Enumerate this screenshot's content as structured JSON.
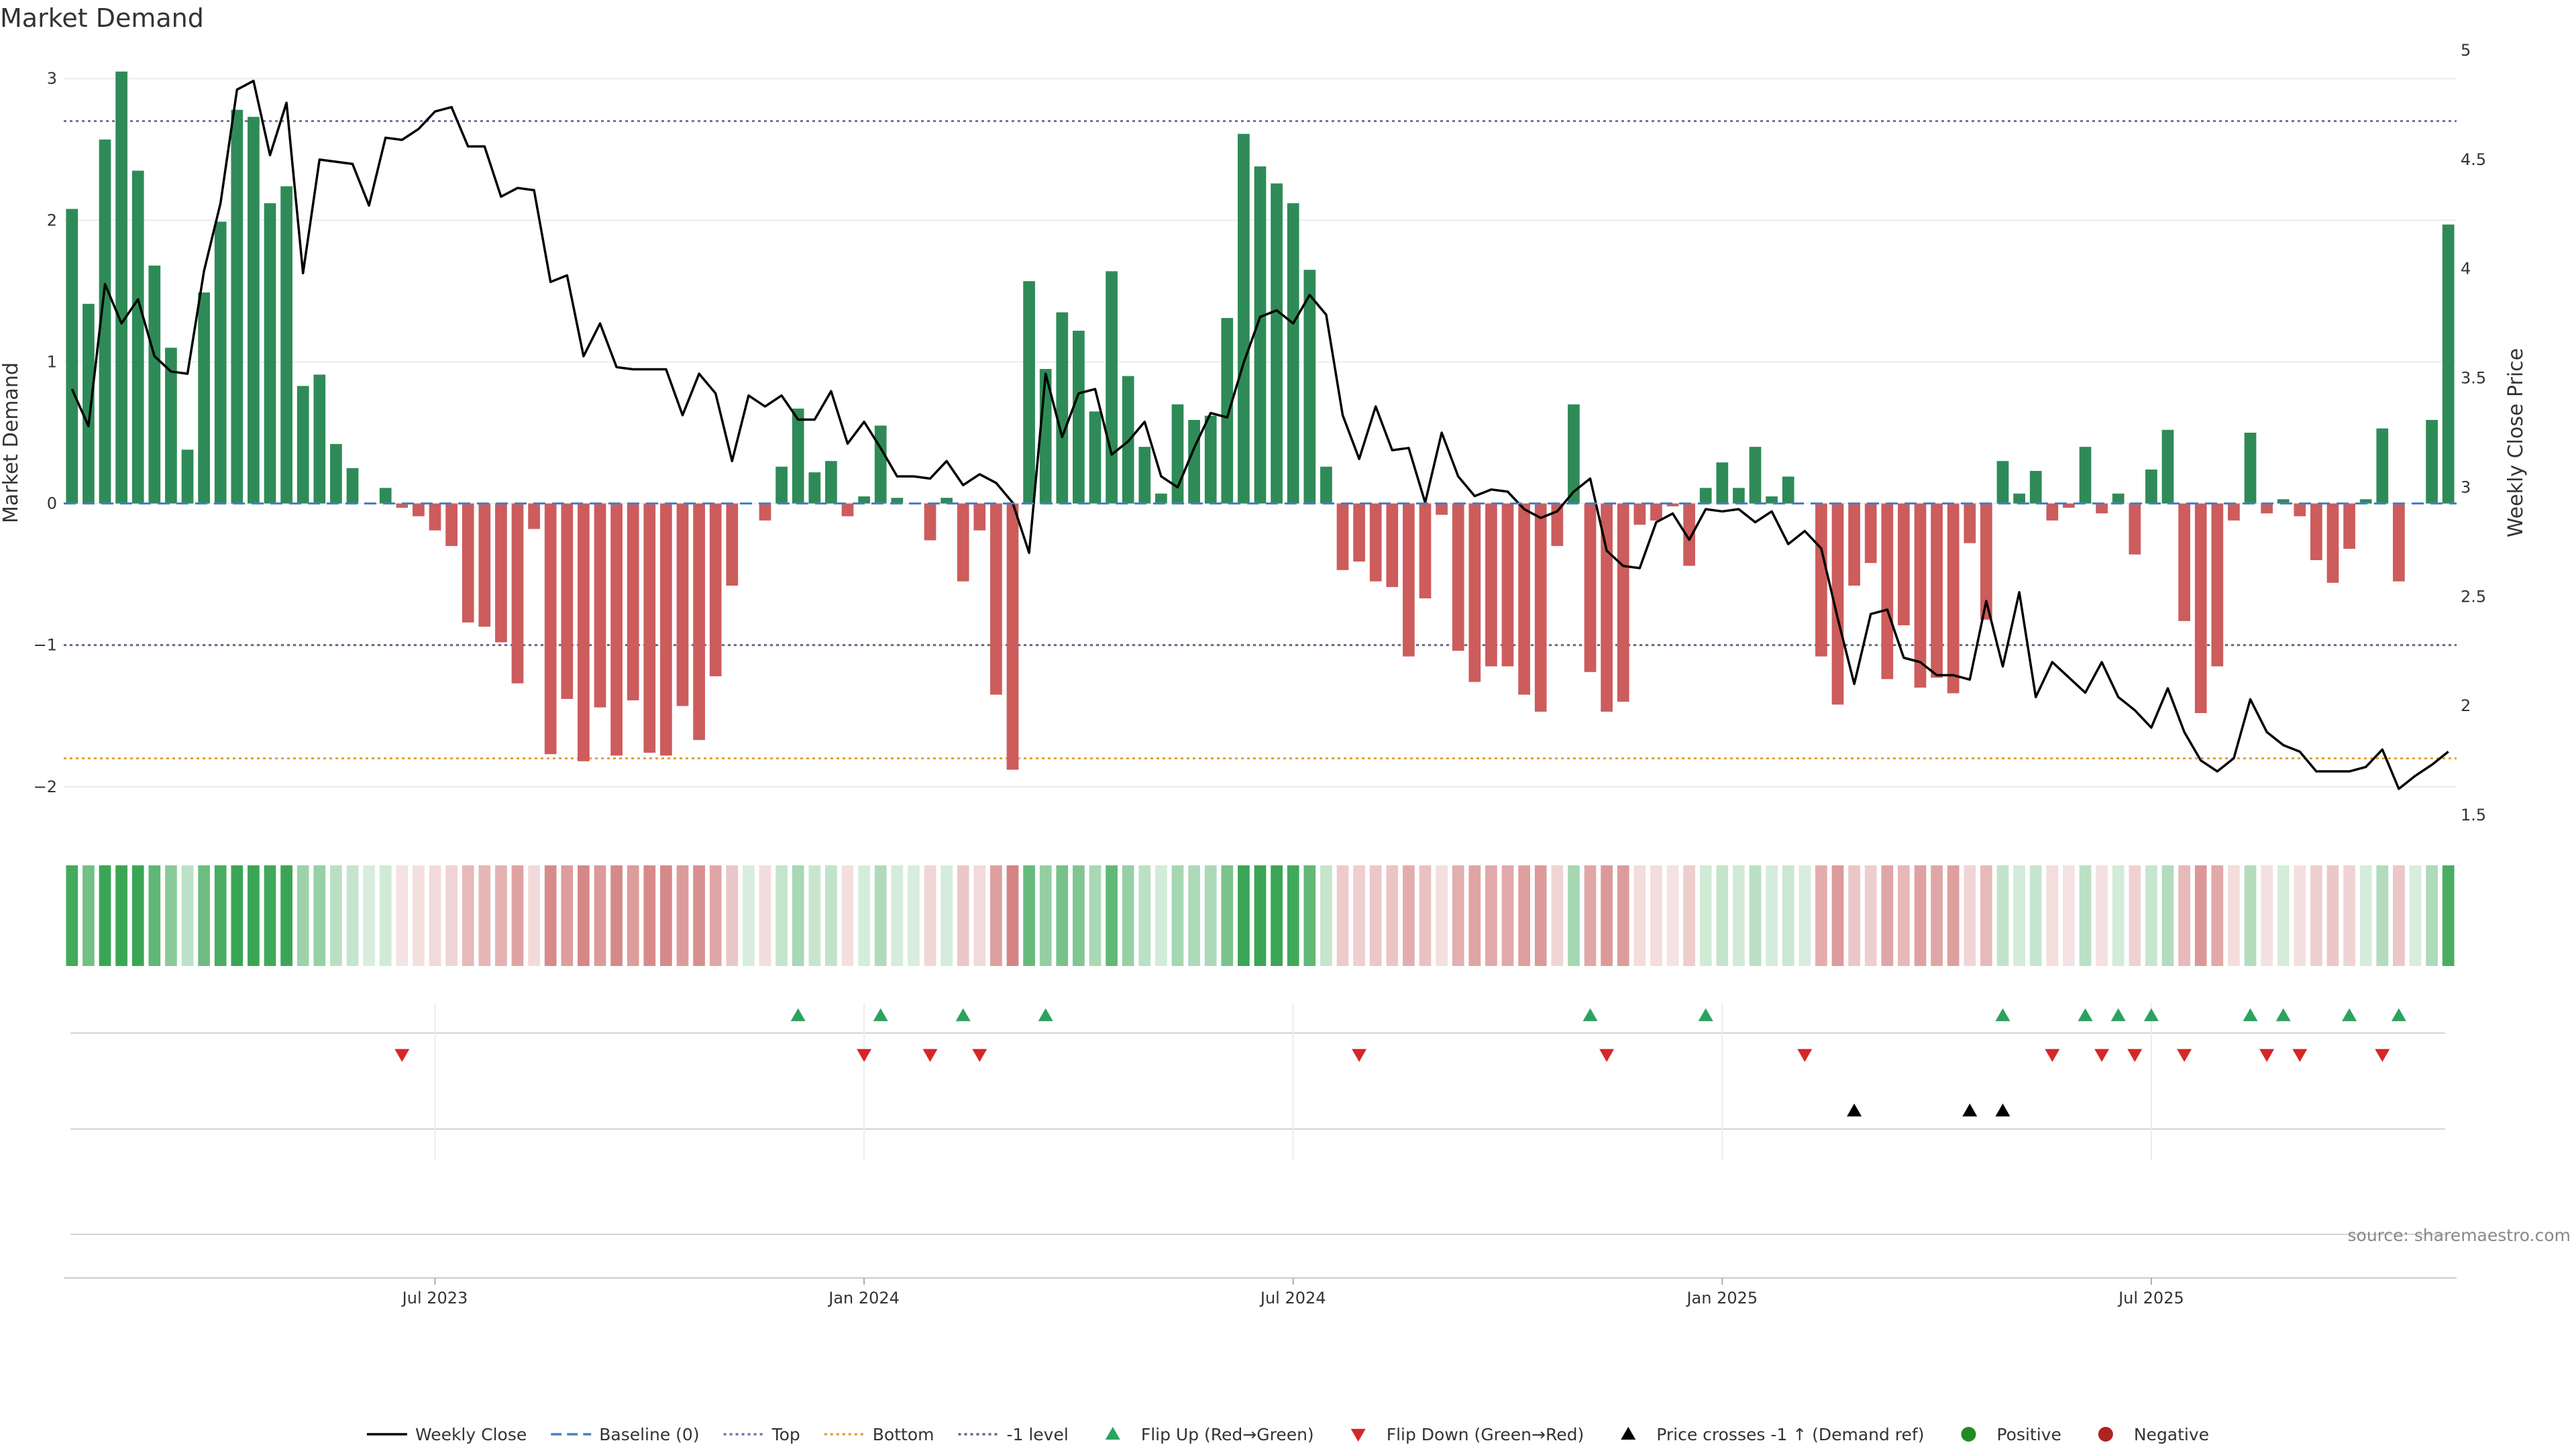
{
  "title": "Market Demand",
  "source": "source: sharemaestro.com",
  "colors": {
    "positive_bar": "#2e8b57",
    "negative_bar": "#cd5c5c",
    "price_line": "#000000",
    "baseline": "#4a7fbf",
    "top": "#7b6fa8",
    "bottom": "#e8a033",
    "minus_one": "#666688",
    "flip_up": "#2ca25f",
    "flip_down": "#d62728",
    "cross": "#000000",
    "positive_dot": "#228b22",
    "negative_dot": "#b22222"
  },
  "chart_data": {
    "type": "bar+line",
    "title": "Market Demand",
    "ylabel_left": "Market Demand",
    "ylabel_right": "Weekly Close Price",
    "ylim_left": [
      -2.2,
      3.2
    ],
    "yticks_left": [
      {
        "v": 3,
        "t": "3"
      },
      {
        "v": 2,
        "t": "2"
      },
      {
        "v": 1,
        "t": "1"
      },
      {
        "v": 0,
        "t": "0"
      },
      {
        "v": -1,
        "t": "−1"
      },
      {
        "v": -2,
        "t": "−2"
      }
    ],
    "ylim_right": [
      1.5,
      5.0
    ],
    "yticks_right": [
      {
        "v": 5,
        "t": "5"
      },
      {
        "v": 4.5,
        "t": "4.5"
      },
      {
        "v": 4,
        "t": "4"
      },
      {
        "v": 3.5,
        "t": "3.5"
      },
      {
        "v": 3,
        "t": "3"
      },
      {
        "v": 2.5,
        "t": "2.5"
      },
      {
        "v": 2,
        "t": "2"
      },
      {
        "v": 1.5,
        "t": "1.5"
      }
    ],
    "x_ticks": [
      {
        "week": 22,
        "label": "Jul 2023"
      },
      {
        "week": 48,
        "label": "Jan 2024"
      },
      {
        "week": 74,
        "label": "Jul 2024"
      },
      {
        "week": 100,
        "label": "Jan 2025"
      },
      {
        "week": 126,
        "label": "Jul 2025"
      }
    ],
    "levels": {
      "baseline": 0,
      "top": 2.7,
      "bottom": -1.8,
      "minus_one": -1
    },
    "demand": [
      2.08,
      1.41,
      2.57,
      3.05,
      2.35,
      1.68,
      1.1,
      0.38,
      1.49,
      1.99,
      2.78,
      2.73,
      2.12,
      2.24,
      0.83,
      0.91,
      0.42,
      0.25,
      0.0,
      0.11,
      -0.03,
      -0.09,
      -0.19,
      -0.3,
      -0.84,
      -0.87,
      -0.98,
      -1.27,
      -0.18,
      -1.77,
      -1.38,
      -1.82,
      -1.44,
      -1.78,
      -1.39,
      -1.76,
      -1.78,
      -1.43,
      -1.67,
      -1.22,
      -0.58,
      0.0,
      -0.12,
      0.26,
      0.67,
      0.22,
      0.3,
      -0.09,
      0.05,
      0.55,
      0.04,
      0.0,
      -0.26,
      0.04,
      -0.55,
      -0.19,
      -1.35,
      -1.88,
      1.57,
      0.95,
      1.35,
      1.22,
      0.65,
      1.64,
      0.9,
      0.4,
      0.07,
      0.7,
      0.59,
      0.62,
      1.31,
      2.61,
      2.38,
      2.26,
      2.12,
      1.65,
      0.26,
      -0.47,
      -0.41,
      -0.55,
      -0.59,
      -1.08,
      -0.67,
      -0.08,
      -1.04,
      -1.26,
      -1.15,
      -1.15,
      -1.35,
      -1.47,
      -0.3,
      0.7,
      -1.19,
      -1.47,
      -1.4,
      -0.15,
      -0.12,
      -0.02,
      -0.44,
      0.11,
      0.29,
      0.11,
      0.4,
      0.05,
      0.19,
      0.0,
      -1.08,
      -1.42,
      -0.58,
      -0.42,
      -1.24,
      -0.86,
      -1.3,
      -1.23,
      -1.34,
      -0.28,
      -0.82,
      0.3,
      0.07,
      0.23,
      -0.12,
      -0.03,
      0.4,
      -0.07,
      0.07,
      -0.36,
      0.24,
      0.52,
      -0.83,
      -1.48,
      -1.15,
      -0.12,
      0.5,
      -0.07,
      0.03,
      -0.09,
      -0.4,
      -0.56,
      -0.32,
      0.03,
      0.53,
      -0.55,
      0.0,
      0.59,
      1.97
    ],
    "price": [
      3.45,
      3.28,
      3.93,
      3.75,
      3.86,
      3.6,
      3.53,
      3.52,
      3.99,
      4.3,
      4.82,
      4.86,
      4.52,
      4.76,
      3.98,
      4.5,
      4.49,
      4.48,
      4.29,
      4.6,
      4.59,
      4.64,
      4.72,
      4.74,
      4.56,
      4.56,
      4.33,
      4.37,
      4.36,
      3.94,
      3.97,
      3.6,
      3.75,
      3.55,
      3.54,
      3.54,
      3.54,
      3.33,
      3.52,
      3.43,
      3.12,
      3.42,
      3.37,
      3.42,
      3.31,
      3.31,
      3.44,
      3.2,
      3.3,
      3.18,
      3.05,
      3.05,
      3.04,
      3.12,
      3.01,
      3.06,
      3.02,
      2.93,
      2.7,
      3.52,
      3.23,
      3.43,
      3.45,
      3.15,
      3.21,
      3.3,
      3.05,
      3.0,
      3.18,
      3.34,
      3.32,
      3.57,
      3.78,
      3.81,
      3.75,
      3.88,
      3.79,
      3.33,
      3.13,
      3.37,
      3.17,
      3.18,
      2.93,
      3.25,
      3.05,
      2.96,
      2.99,
      2.98,
      2.9,
      2.86,
      2.89,
      2.98,
      3.04,
      2.71,
      2.64,
      2.63,
      2.84,
      2.88,
      2.76,
      2.9,
      2.89,
      2.9,
      2.84,
      2.89,
      2.74,
      2.8,
      2.72,
      2.4,
      2.1,
      2.42,
      2.44,
      2.22,
      2.2,
      2.14,
      2.14,
      2.12,
      2.48,
      2.18,
      2.52,
      2.04,
      2.2,
      2.13,
      2.06,
      2.2,
      2.04,
      1.98,
      1.9,
      2.08,
      1.88,
      1.75,
      1.7,
      1.76,
      2.03,
      1.88,
      1.82,
      1.79,
      1.7,
      1.7,
      1.7,
      1.72,
      1.8,
      1.62,
      1.68,
      1.73,
      1.79
    ],
    "flip_up_weeks": [
      44,
      49,
      54,
      59,
      92,
      99,
      117,
      122,
      124,
      126,
      132,
      134,
      138,
      141
    ],
    "flip_down_weeks": [
      20,
      48,
      52,
      55,
      78,
      93,
      105,
      120,
      123,
      125,
      128,
      133,
      135,
      140
    ],
    "cross_weeks": [
      108,
      115,
      117
    ],
    "legend": [
      {
        "kind": "line-solid",
        "color": "#000000",
        "label": "Weekly Close"
      },
      {
        "kind": "line-dash",
        "color": "#4a7fbf",
        "label": "Baseline (0)"
      },
      {
        "kind": "line-dot",
        "color": "#7b6fa8",
        "label": "Top"
      },
      {
        "kind": "line-dot",
        "color": "#e8a033",
        "label": "Bottom"
      },
      {
        "kind": "line-dot",
        "color": "#666688",
        "label": "-1 level"
      },
      {
        "kind": "tri-up",
        "color": "#2ca25f",
        "label": "Flip Up (Red→Green)"
      },
      {
        "kind": "tri-down",
        "color": "#d62728",
        "label": "Flip Down (Green→Red)"
      },
      {
        "kind": "tri-up",
        "color": "#000000",
        "label": "Price crosses -1 ↑ (Demand ref)"
      },
      {
        "kind": "dot",
        "color": "#228b22",
        "label": "Positive"
      },
      {
        "kind": "dot",
        "color": "#b22222",
        "label": "Negative"
      }
    ],
    "legend_placement": "bottom-center",
    "grid": true
  }
}
